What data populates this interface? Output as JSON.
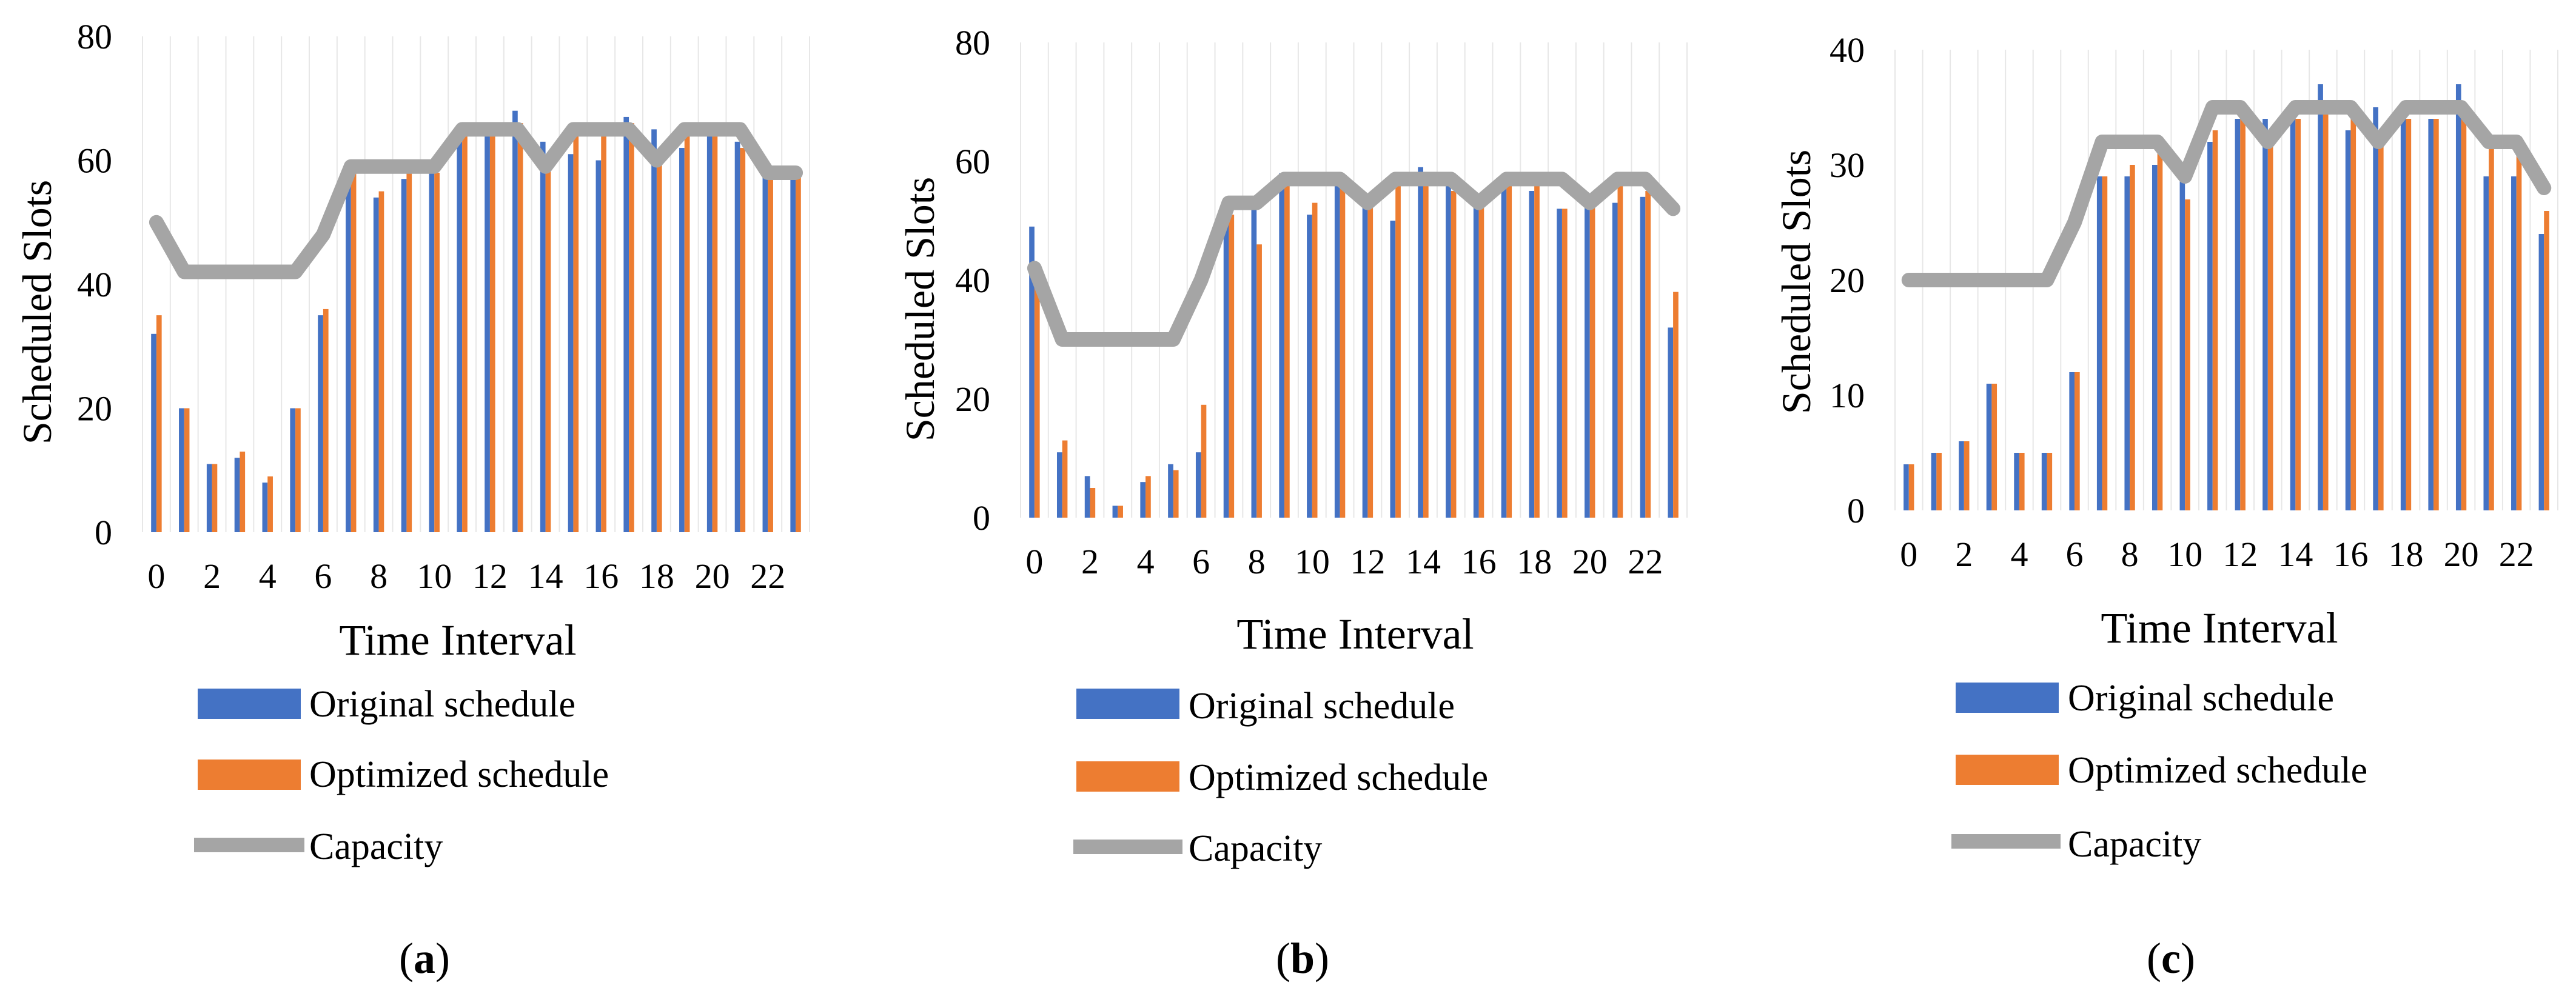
{
  "colors": {
    "original": "#4472C4",
    "optimized": "#ED7D31",
    "capacity": "#A5A5A5",
    "grid": "#E7E7E7"
  },
  "chart_data": [
    {
      "type": "bar",
      "panel_label": "a",
      "xlabel": "Time Interval",
      "ylabel": "Scheduled Slots",
      "ylim": [
        0,
        80
      ],
      "yticks": [
        0,
        20,
        40,
        60,
        80
      ],
      "categories": [
        0,
        1,
        2,
        3,
        4,
        5,
        6,
        7,
        8,
        9,
        10,
        11,
        12,
        13,
        14,
        15,
        16,
        17,
        18,
        19,
        20,
        21,
        22,
        23
      ],
      "xtick_labels": [
        "0",
        "2",
        "4",
        "6",
        "8",
        "10",
        "12",
        "14",
        "16",
        "18",
        "20",
        "22"
      ],
      "series": [
        {
          "name": "Original schedule",
          "kind": "bar",
          "values": [
            32,
            20,
            11,
            12,
            8,
            20,
            35,
            58,
            54,
            57,
            59,
            63,
            64,
            68,
            63,
            61,
            60,
            67,
            65,
            62,
            65,
            63,
            58,
            57
          ]
        },
        {
          "name": "Optimized schedule",
          "kind": "bar",
          "values": [
            35,
            20,
            11,
            13,
            9,
            20,
            36,
            59,
            55,
            58,
            58,
            64,
            65,
            66,
            59,
            65,
            64,
            66,
            61,
            64,
            65,
            62,
            57,
            58
          ]
        },
        {
          "name": "Capacity",
          "kind": "line",
          "values": [
            50,
            42,
            42,
            42,
            42,
            42,
            48,
            59,
            59,
            59,
            59,
            65,
            65,
            65,
            59,
            65,
            65,
            65,
            60,
            65,
            65,
            65,
            58,
            58
          ]
        }
      ]
    },
    {
      "type": "bar",
      "panel_label": "b",
      "xlabel": "Time Interval",
      "ylabel": "Scheduled Slots",
      "ylim": [
        0,
        80
      ],
      "yticks": [
        0,
        20,
        40,
        60,
        80
      ],
      "categories": [
        0,
        1,
        2,
        3,
        4,
        5,
        6,
        7,
        8,
        9,
        10,
        11,
        12,
        13,
        14,
        15,
        16,
        17,
        18,
        19,
        20,
        21,
        22,
        23
      ],
      "xtick_labels": [
        "0",
        "2",
        "4",
        "6",
        "8",
        "10",
        "12",
        "14",
        "16",
        "18",
        "20",
        "22"
      ],
      "series": [
        {
          "name": "Original schedule",
          "kind": "bar",
          "values": [
            49,
            11,
            7,
            2,
            6,
            9,
            11,
            50,
            52,
            58,
            51,
            57,
            54,
            50,
            59,
            57,
            53,
            56,
            55,
            52,
            54,
            53,
            54,
            32
          ]
        },
        {
          "name": "Optimized schedule",
          "kind": "bar",
          "values": [
            40,
            13,
            5,
            2,
            7,
            8,
            19,
            51,
            46,
            57,
            53,
            56,
            53,
            57,
            57,
            55,
            54,
            57,
            56,
            52,
            53,
            56,
            55,
            38
          ]
        },
        {
          "name": "Capacity",
          "kind": "line",
          "values": [
            42,
            30,
            30,
            30,
            30,
            30,
            40,
            53,
            53,
            57,
            57,
            57,
            53,
            57,
            57,
            57,
            53,
            57,
            57,
            57,
            53,
            57,
            57,
            52
          ]
        }
      ]
    },
    {
      "type": "bar",
      "panel_label": "c",
      "xlabel": "Time Interval",
      "ylabel": "Scheduled Slots",
      "ylim": [
        0,
        40
      ],
      "yticks": [
        0,
        10,
        20,
        30,
        40
      ],
      "categories": [
        0,
        1,
        2,
        3,
        4,
        5,
        6,
        7,
        8,
        9,
        10,
        11,
        12,
        13,
        14,
        15,
        16,
        17,
        18,
        19,
        20,
        21,
        22,
        23
      ],
      "xtick_labels": [
        "0",
        "2",
        "4",
        "6",
        "8",
        "10",
        "12",
        "14",
        "16",
        "18",
        "20",
        "22"
      ],
      "series": [
        {
          "name": "Original schedule",
          "kind": "bar",
          "values": [
            4,
            5,
            6,
            11,
            5,
            5,
            12,
            29,
            29,
            30,
            29,
            32,
            34,
            34,
            35,
            37,
            33,
            35,
            34,
            34,
            37,
            29,
            29,
            24
          ]
        },
        {
          "name": "Optimized schedule",
          "kind": "bar",
          "values": [
            4,
            5,
            6,
            11,
            5,
            5,
            12,
            29,
            30,
            31,
            27,
            33,
            34,
            32,
            34,
            35,
            35,
            33,
            34,
            34,
            34,
            32,
            31,
            26
          ]
        },
        {
          "name": "Capacity",
          "kind": "line",
          "values": [
            20,
            20,
            20,
            20,
            20,
            20,
            25,
            32,
            32,
            32,
            29,
            35,
            35,
            32,
            35,
            35,
            35,
            32,
            35,
            35,
            35,
            32,
            32,
            28
          ]
        }
      ]
    }
  ]
}
